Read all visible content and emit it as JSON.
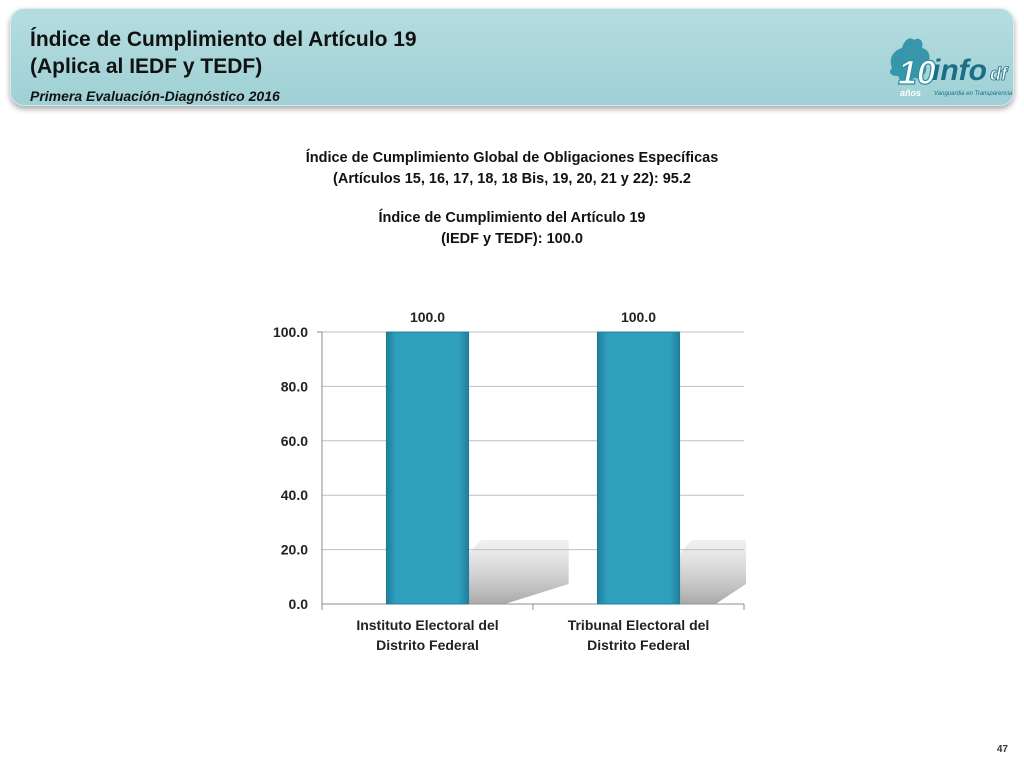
{
  "header": {
    "title_line1": "Índice de Cumplimiento del Artículo 19",
    "title_line2": "(Aplica al IEDF y TEDF)",
    "subtitle": "Primera Evaluación-Diagnóstico 2016",
    "logo": {
      "number": "10",
      "brand": "info",
      "brand_suffix": "df",
      "anos": "años",
      "tagline": "Vanguardia en Transparencia"
    }
  },
  "summary": {
    "global_line1": "Índice de Cumplimiento Global de Obligaciones Específicas",
    "global_line2": "(Artículos 15, 16, 17, 18, 18 Bis, 19, 20, 21 y 22): 95.2",
    "article_line1": "Índice de Cumplimiento del Artículo 19",
    "article_line2": "(IEDF y TEDF): 100.0"
  },
  "chart_data": {
    "type": "bar",
    "categories": [
      [
        "Instituto Electoral del",
        "Distrito Federal"
      ],
      [
        "Tribunal Electoral del",
        "Distrito Federal"
      ]
    ],
    "values": [
      100.0,
      100.0
    ],
    "data_labels": [
      "100.0",
      "100.0"
    ],
    "ylim": [
      0,
      100
    ],
    "yticks": [
      "0.0",
      "20.0",
      "40.0",
      "60.0",
      "80.0",
      "100.0"
    ],
    "ytick_values": [
      0,
      20,
      40,
      60,
      80,
      100
    ],
    "grid": true,
    "legend": "none",
    "bar_color": "#2e9fbd"
  },
  "page_number": "47"
}
